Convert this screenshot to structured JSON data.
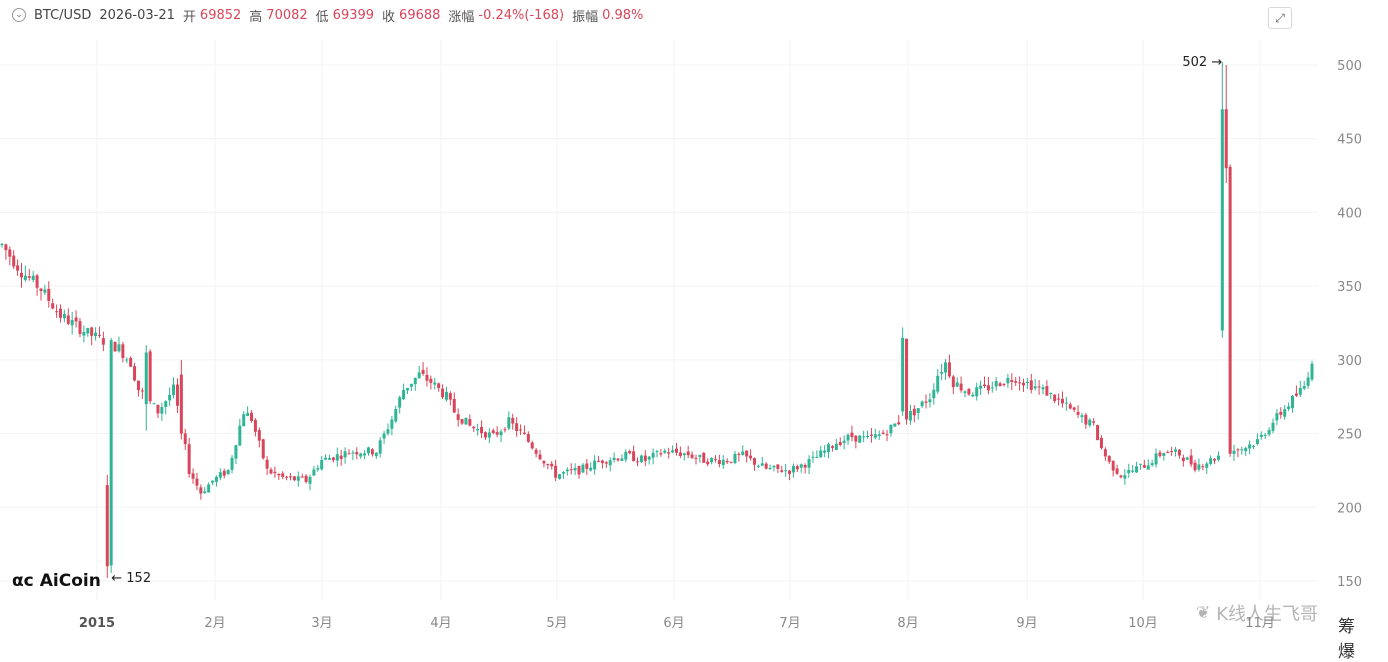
{
  "header": {
    "pair": "BTC/USD",
    "date": "2026-03-21",
    "open_label": "开",
    "open": "69852",
    "high_label": "高",
    "high": "70082",
    "low_label": "低",
    "low": "69399",
    "close_label": "收",
    "close": "69688",
    "change_label": "涨幅",
    "change": "-0.24%(-168)",
    "amplitude_label": "振幅",
    "amplitude": "0.98%"
  },
  "toolbar": {
    "fullscreen_icon": "fullscreen-icon",
    "toggle_icon": "chevron-down-icon"
  },
  "logo": {
    "text": "AiCoin"
  },
  "watermark": {
    "text": "K线人生飞哥"
  },
  "corner_text": "筹 爆",
  "colors": {
    "up": "#2fb595",
    "down": "#d9455a",
    "axis_text": "#888888"
  },
  "chart_data": {
    "type": "candlestick",
    "title": "",
    "xlabel": "",
    "ylabel": "",
    "ylim": [
      137,
      535
    ],
    "y_ticks": [
      150,
      200,
      250,
      300,
      350,
      400,
      450,
      500
    ],
    "x_ticks": [
      "2015",
      "2月",
      "3月",
      "4月",
      "5月",
      "6月",
      "7月",
      "8月",
      "9月",
      "10月",
      "11月"
    ],
    "x_range_days": [
      0,
      336
    ],
    "annotations": [
      {
        "text": "152",
        "day": 27,
        "value": 152,
        "direction": "left-arrow"
      },
      {
        "text": "502",
        "day": 314,
        "value": 502,
        "direction": "right-arrow"
      }
    ],
    "waypoints": [
      [
        0,
        378
      ],
      [
        5,
        360
      ],
      [
        10,
        348
      ],
      [
        15,
        330
      ],
      [
        22,
        318
      ],
      [
        30,
        308
      ],
      [
        33,
        298
      ],
      [
        35,
        280
      ],
      [
        40,
        265
      ],
      [
        44,
        280
      ],
      [
        46,
        255
      ],
      [
        48,
        225
      ],
      [
        51,
        210
      ],
      [
        54,
        218
      ],
      [
        58,
        225
      ],
      [
        62,
        265
      ],
      [
        64,
        260
      ],
      [
        68,
        225
      ],
      [
        72,
        220
      ],
      [
        78,
        218
      ],
      [
        82,
        232
      ],
      [
        90,
        238
      ],
      [
        96,
        238
      ],
      [
        100,
        260
      ],
      [
        103,
        280
      ],
      [
        107,
        290
      ],
      [
        110,
        285
      ],
      [
        114,
        275
      ],
      [
        116,
        265
      ],
      [
        120,
        255
      ],
      [
        126,
        248
      ],
      [
        130,
        258
      ],
      [
        134,
        248
      ],
      [
        138,
        235
      ],
      [
        142,
        222
      ],
      [
        148,
        225
      ],
      [
        154,
        232
      ],
      [
        160,
        235
      ],
      [
        165,
        232
      ],
      [
        170,
        238
      ],
      [
        176,
        236
      ],
      [
        180,
        232
      ],
      [
        186,
        232
      ],
      [
        190,
        235
      ],
      [
        196,
        226
      ],
      [
        202,
        225
      ],
      [
        208,
        232
      ],
      [
        214,
        244
      ],
      [
        218,
        248
      ],
      [
        222,
        246
      ],
      [
        226,
        250
      ],
      [
        230,
        258
      ],
      [
        234,
        265
      ],
      [
        238,
        275
      ],
      [
        240,
        290
      ],
      [
        242,
        298
      ],
      [
        244,
        285
      ],
      [
        248,
        278
      ],
      [
        252,
        280
      ],
      [
        256,
        285
      ],
      [
        260,
        288
      ],
      [
        264,
        283
      ],
      [
        268,
        278
      ],
      [
        272,
        270
      ],
      [
        276,
        262
      ],
      [
        280,
        255
      ],
      [
        282,
        240
      ],
      [
        284,
        230
      ],
      [
        287,
        222
      ],
      [
        290,
        225
      ],
      [
        294,
        230
      ],
      [
        298,
        238
      ],
      [
        302,
        236
      ],
      [
        306,
        228
      ],
      [
        310,
        232
      ],
      [
        314,
        238
      ],
      [
        318,
        240
      ],
      [
        322,
        245
      ],
      [
        326,
        258
      ],
      [
        330,
        270
      ],
      [
        334,
        282
      ],
      [
        336,
        300
      ]
    ],
    "special_candles": [
      [
        27,
        215,
        160,
        152,
        222,
        "down"
      ],
      [
        37,
        270,
        305,
        252,
        310,
        "up"
      ],
      [
        46,
        290,
        250,
        246,
        300,
        "down"
      ],
      [
        231,
        265,
        315,
        262,
        322,
        "up"
      ],
      [
        313,
        320,
        470,
        315,
        502,
        "up"
      ],
      [
        314,
        470,
        430,
        420,
        500,
        "down"
      ]
    ]
  }
}
